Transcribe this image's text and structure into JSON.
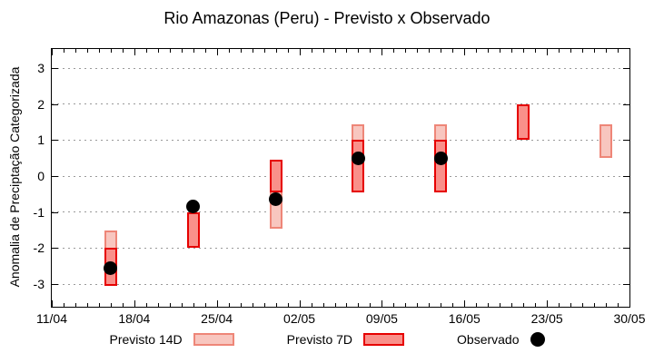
{
  "title": "Rio Amazonas (Peru) - Previsto x Observado",
  "chart_data": {
    "type": "range-bar",
    "title": "Rio Amazonas (Peru) - Previsto x Observado",
    "xlabel": "",
    "ylabel": "Anomalia de Preciptação Categorizada",
    "x_axis": {
      "range_days": [
        0,
        49
      ],
      "tick_days": [
        0,
        7,
        14,
        21,
        28,
        35,
        42,
        49
      ],
      "tick_labels": [
        "11/04",
        "18/04",
        "25/04",
        "02/05",
        "09/05",
        "16/05",
        "23/05",
        "30/05"
      ],
      "minor_tick_every_days": 1
    },
    "y_axis": {
      "range": [
        -3.63,
        3.53
      ],
      "ticks": [
        3,
        2,
        1,
        0,
        -1,
        -2,
        -3
      ],
      "grid": "dotted-horizontal",
      "grid_color": "#9a9a9a"
    },
    "series": [
      {
        "name": "Previsto 14D",
        "id": "previsto-14d",
        "type": "box",
        "color_fill": "#f8c6bf",
        "color_border": "#ee8678",
        "points": [
          {
            "date": "16/04",
            "day": 5,
            "low": -3.05,
            "high": -1.5
          },
          {
            "date": "30/04",
            "day": 19,
            "low": -1.45,
            "high": 0.45
          },
          {
            "date": "07/05",
            "day": 26,
            "low": -0.45,
            "high": 1.45
          },
          {
            "date": "14/05",
            "day": 33,
            "low": -0.45,
            "high": 1.45
          },
          {
            "date": "28/05",
            "day": 47,
            "low": 0.5,
            "high": 1.45
          }
        ]
      },
      {
        "name": "Previsto 7D",
        "id": "previsto-7d",
        "type": "box",
        "color_fill": "#f9908a",
        "color_border": "#e60000",
        "points": [
          {
            "date": "16/04",
            "day": 5,
            "low": -3.05,
            "high": -2.0
          },
          {
            "date": "23/04",
            "day": 12,
            "low": -2.0,
            "high": -1.0
          },
          {
            "date": "30/04",
            "day": 19,
            "low": -0.45,
            "high": 0.45
          },
          {
            "date": "07/05",
            "day": 26,
            "low": -0.45,
            "high": 1.0
          },
          {
            "date": "14/05",
            "day": 33,
            "low": -0.45,
            "high": 1.0
          },
          {
            "date": "21/05",
            "day": 40,
            "low": 1.0,
            "high": 2.0
          }
        ]
      },
      {
        "name": "Observado",
        "id": "observado",
        "type": "point",
        "color": "#000000",
        "points": [
          {
            "date": "16/04",
            "day": 5,
            "value": -2.55
          },
          {
            "date": "23/04",
            "day": 12,
            "value": -0.85
          },
          {
            "date": "30/04",
            "day": 19,
            "value": -0.65
          },
          {
            "date": "07/05",
            "day": 26,
            "value": 0.5
          },
          {
            "date": "14/05",
            "day": 33,
            "value": 0.5
          }
        ]
      }
    ],
    "legend": {
      "position": "bottom",
      "items": [
        {
          "label": "Previsto 14D",
          "swatch": "box-light"
        },
        {
          "label": "Previsto 7D",
          "swatch": "box-dark"
        },
        {
          "label": "Observado",
          "swatch": "dot"
        }
      ]
    }
  }
}
